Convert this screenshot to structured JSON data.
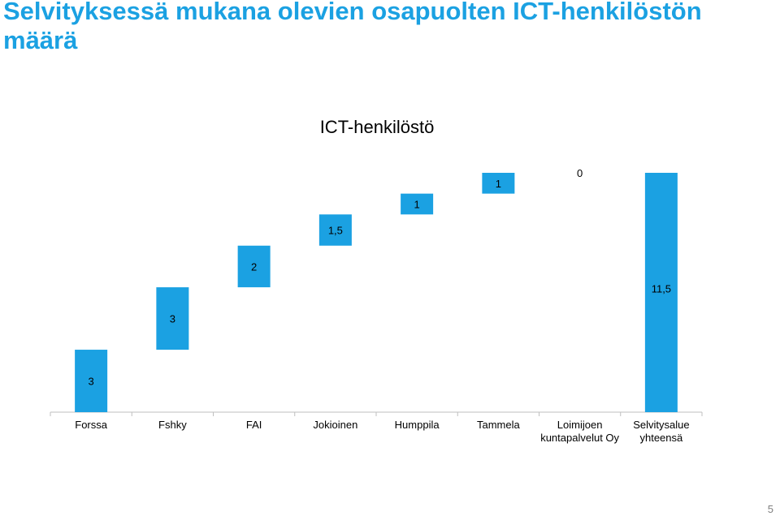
{
  "slide": {
    "title": "Selvityksessä mukana olevien osapuolten ICT-henkilöstön määrä",
    "page_number": "5"
  },
  "colors": {
    "title": "#1ba1e2",
    "bar": "#1ba1e2",
    "axis": "#bfbfbf",
    "text": "#000000"
  },
  "chart_data": {
    "type": "bar",
    "subtype": "waterfall",
    "title": "ICT-henkilöstö",
    "categories": [
      [
        "Forssa"
      ],
      [
        "Fshky"
      ],
      [
        "FAI"
      ],
      [
        "Jokioinen"
      ],
      [
        "Humppila"
      ],
      [
        "Tammela"
      ],
      [
        "Loimijoen",
        "kuntapalvelut Oy"
      ],
      [
        "Selvitysalue",
        "yhteensä"
      ]
    ],
    "values": [
      3,
      3,
      2,
      1.5,
      1,
      1,
      0,
      11.5
    ],
    "labels": [
      "3",
      "3",
      "2",
      "1,5",
      "1",
      "1",
      "0",
      "11,5"
    ],
    "total_index": 7,
    "ylim": [
      0,
      11.5
    ],
    "grid": false,
    "legend": "none"
  }
}
